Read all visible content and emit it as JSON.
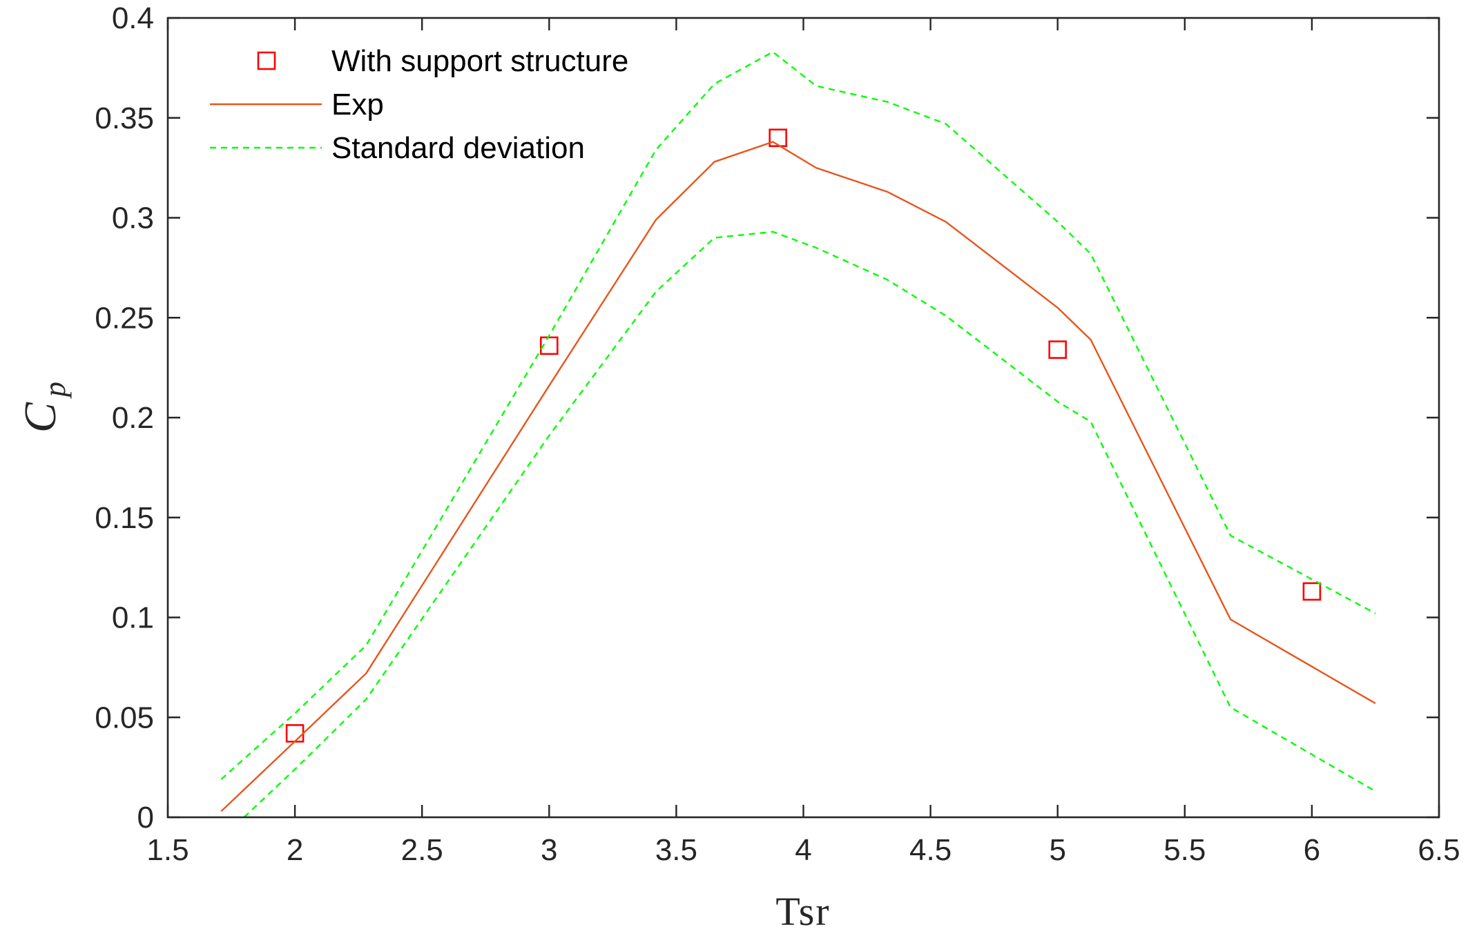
{
  "chart_data": {
    "type": "line",
    "title": "",
    "xlabel": "Tsr",
    "ylabel": "C",
    "ylabel_subscript": "p",
    "xlim": [
      1.5,
      6.5
    ],
    "ylim": [
      0,
      0.4
    ],
    "xticks": [
      "1.5",
      "2",
      "2.5",
      "3",
      "3.5",
      "4",
      "4.5",
      "5",
      "5.5",
      "6",
      "6.5"
    ],
    "yticks": [
      "0",
      "0.05",
      "0.1",
      "0.15",
      "0.2",
      "0.25",
      "0.3",
      "0.35",
      "0.4"
    ],
    "grid": false,
    "legend_position": "top-left",
    "series": [
      {
        "name": "With support structure",
        "style": "markers-square",
        "color": "#ff0000",
        "x": [
          2.0,
          3.0,
          3.9,
          5.0,
          6.0
        ],
        "y": [
          0.042,
          0.236,
          0.34,
          0.234,
          0.113
        ]
      },
      {
        "name": "Exp",
        "style": "solid",
        "color": "#e8541c",
        "x": [
          1.71,
          2.0,
          2.28,
          3.0,
          3.42,
          3.65,
          3.88,
          4.05,
          4.33,
          4.56,
          5.0,
          5.13,
          5.68,
          6.25
        ],
        "y": [
          0.003,
          0.038,
          0.072,
          0.216,
          0.299,
          0.328,
          0.338,
          0.325,
          0.313,
          0.298,
          0.255,
          0.239,
          0.099,
          0.057
        ]
      },
      {
        "name": "Standard deviation",
        "style": "dashed",
        "color": "#00ff00",
        "x": [
          1.71,
          2.0,
          2.28,
          3.0,
          3.42,
          3.65,
          3.88,
          4.05,
          4.33,
          4.56,
          5.0,
          5.13,
          5.68,
          6.25
        ],
        "y": [
          0.019,
          0.052,
          0.086,
          0.241,
          0.334,
          0.367,
          0.383,
          0.366,
          0.358,
          0.347,
          0.298,
          0.282,
          0.141,
          0.102
        ]
      },
      {
        "name": "Standard deviation (lower)",
        "style": "dashed",
        "color": "#00ff00",
        "legend": false,
        "x": [
          1.8,
          2.0,
          2.28,
          3.0,
          3.42,
          3.65,
          3.88,
          4.05,
          4.33,
          4.56,
          5.0,
          5.13,
          5.68,
          6.25
        ],
        "y": [
          0.0,
          0.024,
          0.059,
          0.191,
          0.263,
          0.29,
          0.293,
          0.285,
          0.269,
          0.251,
          0.208,
          0.198,
          0.055,
          0.013
        ]
      }
    ]
  }
}
